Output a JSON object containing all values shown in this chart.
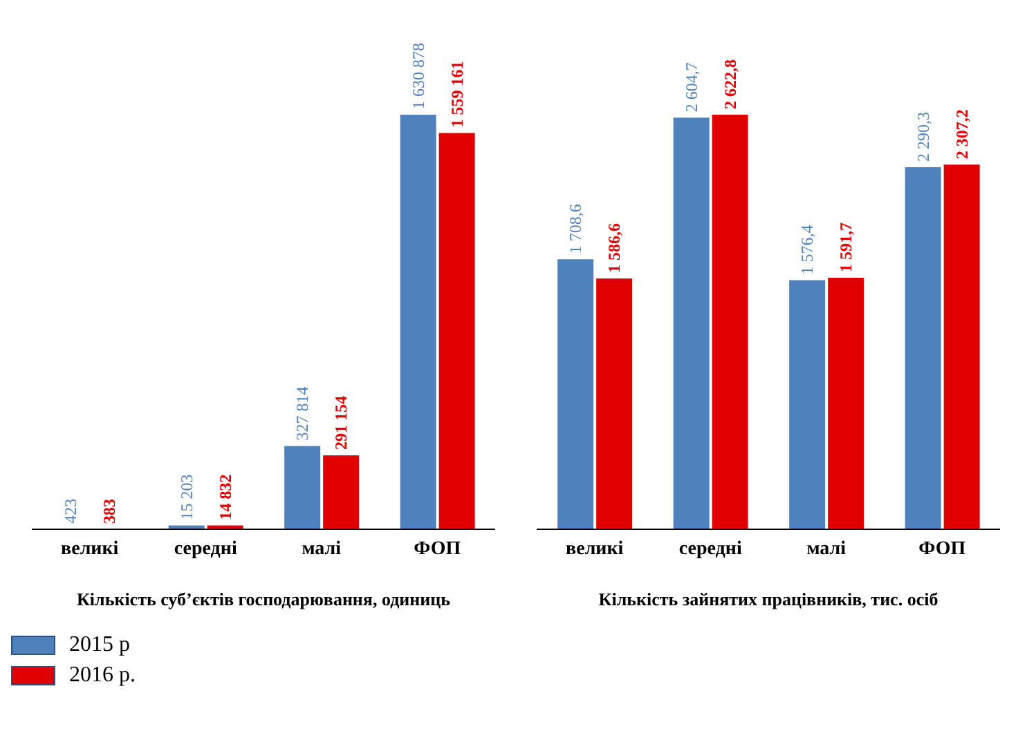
{
  "chart_data": [
    {
      "type": "bar",
      "xlabel": "Кількість суб’єктів господарювання, одиниць",
      "categories": [
        "великі",
        "середні",
        "малі",
        "ФОП"
      ],
      "legend": "bottom left",
      "series": [
        {
          "name": "2015 р",
          "color": "#4f81bd",
          "values": [
            423,
            15203,
            327814,
            1630878
          ],
          "value_labels": [
            "423",
            "15 203",
            "327 814",
            "1 630 878"
          ]
        },
        {
          "name": "2016 р.",
          "color": "#e00000",
          "values": [
            383,
            14832,
            291154,
            1559161
          ],
          "value_labels": [
            "383",
            "14 832",
            "291 154",
            "1 559 161"
          ]
        }
      ]
    },
    {
      "type": "bar",
      "xlabel": "Кількість зайнятих працівників, тис. осіб",
      "categories": [
        "великі",
        "середні",
        "малі",
        "ФОП"
      ],
      "series": [
        {
          "color": "#4f81bd",
          "values": [
            1708.6,
            2604.7,
            1576.4,
            2290.3
          ],
          "value_labels": [
            "1 708,6",
            "2 604,7",
            "1 576,4",
            "2 290,3"
          ]
        },
        {
          "color": "#e00000",
          "values": [
            1586.6,
            2622.8,
            1591.7,
            2307.2
          ],
          "value_labels": [
            "1 586,6",
            "2 622,8",
            "1 591,7",
            "2 307,2"
          ]
        }
      ]
    }
  ]
}
